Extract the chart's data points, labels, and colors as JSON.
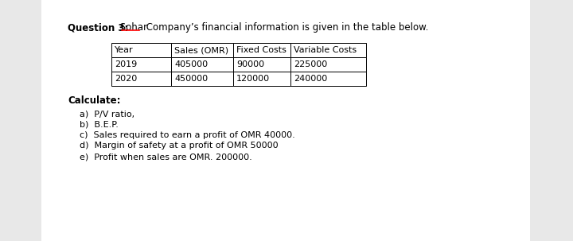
{
  "bg_color": "#e8e8e8",
  "page_bg": "#ffffff",
  "title_bold": "Question 3:",
  "title_sohar": " Sohar",
  "title_rest": " Company’s financial information is given in the table below.",
  "table_headers": [
    "Year",
    "Sales (OMR)",
    "Fixed Costs",
    "Variable Costs"
  ],
  "table_rows": [
    [
      "2019",
      "405000",
      "90000",
      "225000"
    ],
    [
      "2020",
      "450000",
      "120000",
      "240000"
    ]
  ],
  "calculate_label": "Calculate:",
  "items": [
    "a)  P/V ratio,",
    "b)  B.E.P.",
    "c)  Sales required to earn a profit of OMR 40000.",
    "d)  Margin of safety at a profit of OMR 50000",
    "e)  Profit when sales are OMR. 200000."
  ],
  "font_size_title": 8.5,
  "font_size_table": 8.0,
  "font_size_text": 8.0,
  "font_size_calculate": 8.5
}
